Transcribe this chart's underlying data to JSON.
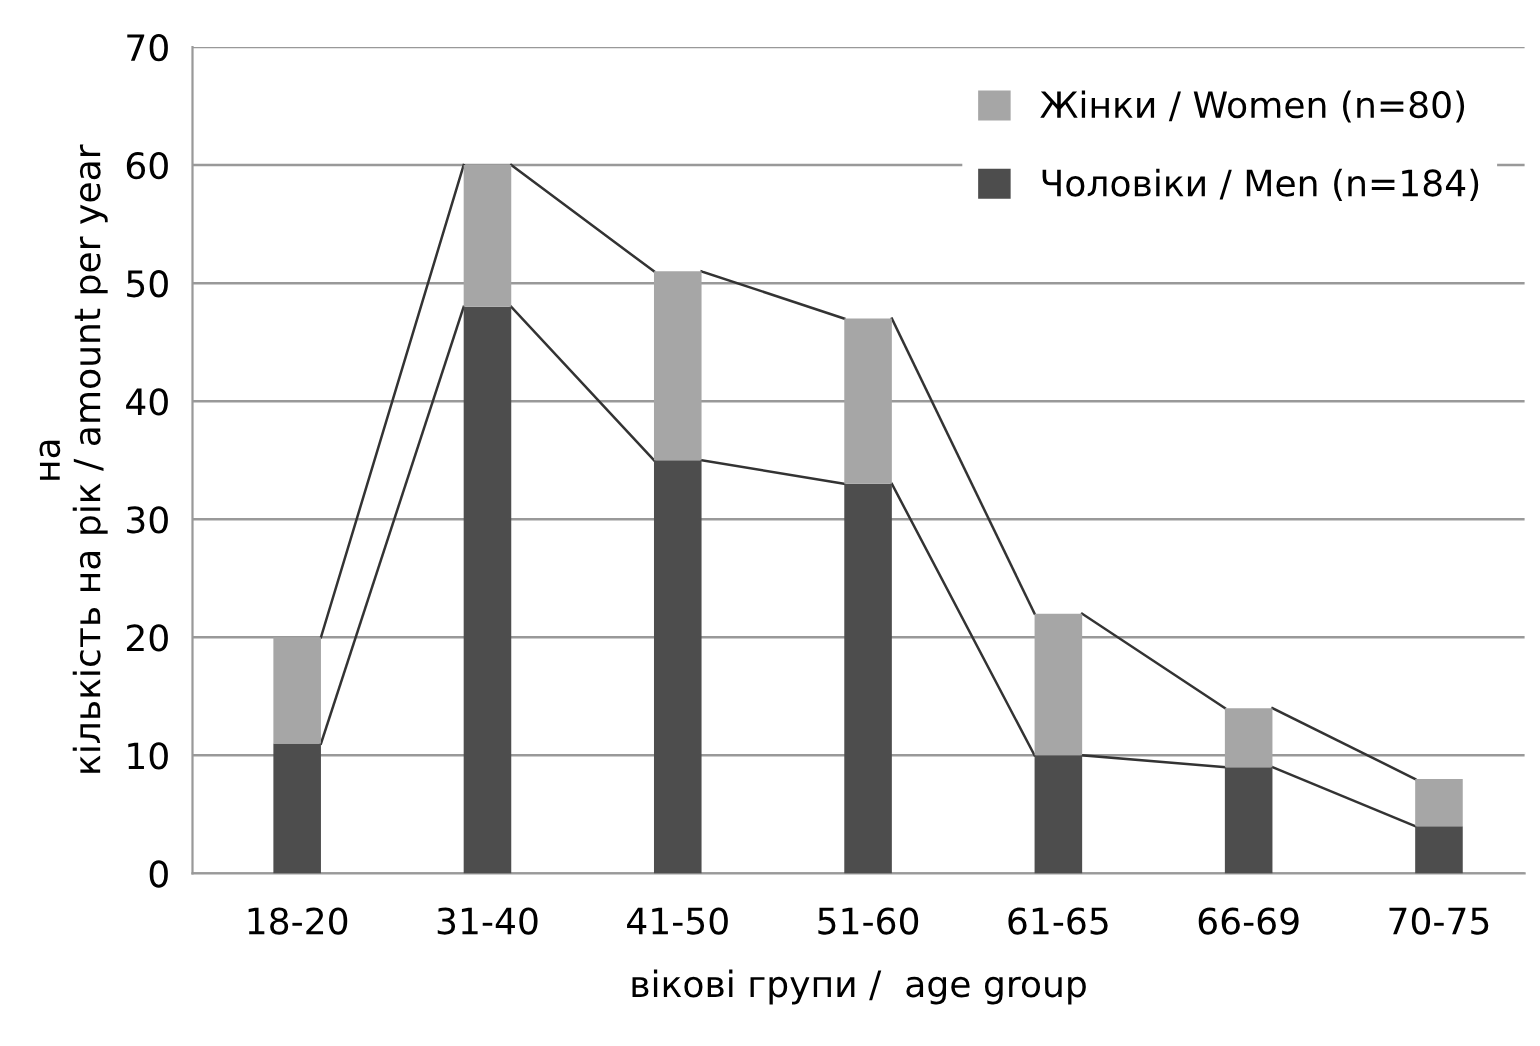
{
  "chart_data": {
    "type": "bar",
    "stacked": true,
    "categories": [
      "18-20",
      "31-40",
      "41-50",
      "51-60",
      "61-65",
      "66-69",
      "70-75"
    ],
    "series": [
      {
        "name": "Чоловіки / Men (n=184)",
        "color": "#4d4d4d",
        "values": [
          11,
          48,
          35,
          33,
          10,
          9,
          4
        ]
      },
      {
        "name": "Жінки / Women (n=80)",
        "color": "#a6a6a6",
        "values": [
          9,
          12,
          16,
          14,
          12,
          5,
          4
        ]
      }
    ],
    "xlabel": "вікові групи /  age group",
    "ylabel": "на\nкількість на рік / amount per year",
    "ylim": [
      0,
      70
    ],
    "yticks": [
      0,
      10,
      20,
      30,
      40,
      50,
      60,
      70
    ],
    "grid": "y",
    "legend": "top right"
  }
}
